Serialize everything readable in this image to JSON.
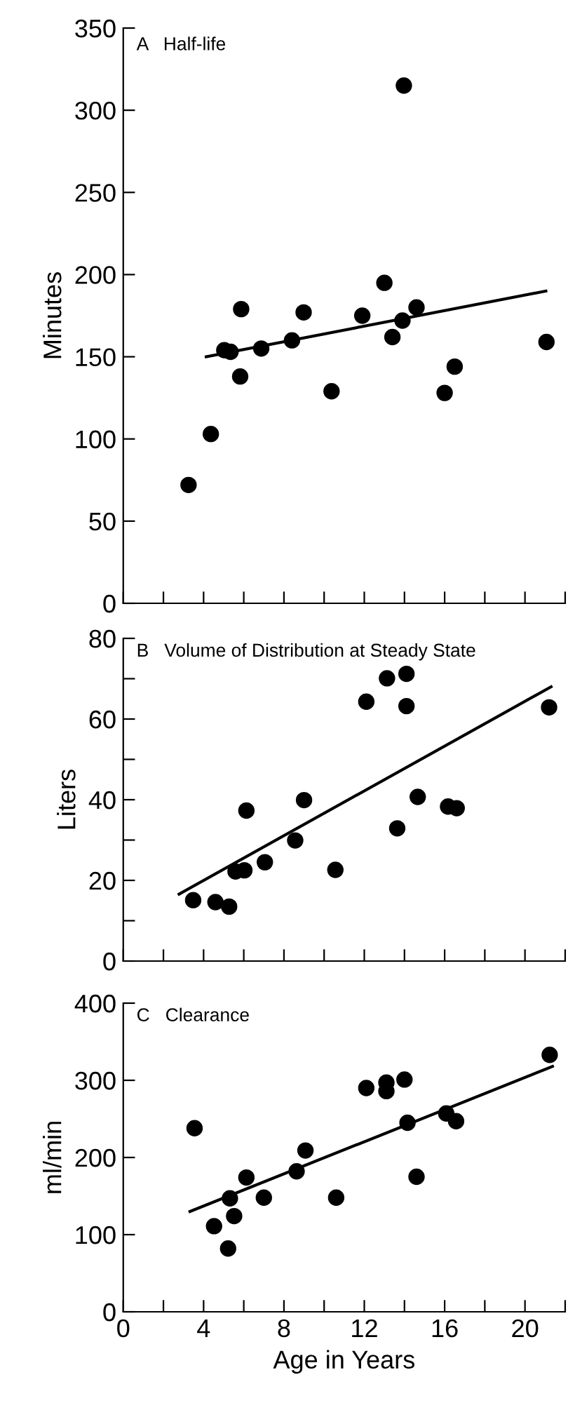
{
  "chart_data": [
    {
      "type": "scatter",
      "title": "A   Half-life",
      "ylabel": "Minutes",
      "xlim": [
        0,
        22
      ],
      "xticks": [
        {
          "value": 0,
          "label": null
        },
        {
          "value": 2,
          "label": null
        },
        {
          "value": 4,
          "label": null
        },
        {
          "value": 6,
          "label": null
        },
        {
          "value": 8,
          "label": null
        },
        {
          "value": 10,
          "label": null
        },
        {
          "value": 12,
          "label": null
        },
        {
          "value": 14,
          "label": null
        },
        {
          "value": 16,
          "label": null
        },
        {
          "value": 18,
          "label": null
        },
        {
          "value": 20,
          "label": null
        },
        {
          "value": 22,
          "label": null
        }
      ],
      "ylim": [
        0,
        350
      ],
      "yticks": [
        0,
        50,
        100,
        150,
        200,
        250,
        300,
        350
      ],
      "tick_labels": "y",
      "grid": false,
      "marker": "circle",
      "series": [
        {
          "color": "#000000",
          "x": [
            3.25,
            4.36,
            5.03,
            5.34,
            5.87,
            5.82,
            6.87,
            8.4,
            8.98,
            10.37,
            11.9,
            13.0,
            13.4,
            13.9,
            13.97,
            14.6,
            16.0,
            16.5,
            21.07
          ],
          "values": [
            72,
            103,
            154,
            153,
            179,
            138,
            155,
            160,
            177,
            129,
            175,
            195,
            162,
            172,
            315,
            180,
            128,
            144,
            159
          ]
        },
        {
          "type": "line",
          "marker": "none",
          "color": "#000000",
          "x": [
            4.13,
            21.04
          ],
          "values": [
            150,
            190
          ]
        }
      ]
    },
    {
      "type": "scatter",
      "title": "B   Volume of Distribution at Steady State",
      "ylabel": "Liters",
      "xlim": [
        0,
        22
      ],
      "xticks": [
        {
          "value": 0,
          "label": null
        },
        {
          "value": 2,
          "label": null
        },
        {
          "value": 4,
          "label": null
        },
        {
          "value": 6,
          "label": null
        },
        {
          "value": 8,
          "label": null
        },
        {
          "value": 10,
          "label": null
        },
        {
          "value": 12,
          "label": null
        },
        {
          "value": 14,
          "label": null
        },
        {
          "value": 16,
          "label": null
        },
        {
          "value": 18,
          "label": null
        },
        {
          "value": 20,
          "label": null
        },
        {
          "value": 22,
          "label": null
        }
      ],
      "ylim": [
        0,
        80
      ],
      "yticks": [
        0,
        {
          "value": 10,
          "label": null
        },
        20,
        {
          "value": 30,
          "label": null
        },
        40,
        {
          "value": 50,
          "label": null
        },
        60,
        {
          "value": 70,
          "label": null
        },
        80
      ],
      "tick_labels": "y",
      "grid": false,
      "marker": "circle",
      "series": [
        {
          "color": "#000000",
          "x": [
            3.48,
            4.59,
            5.27,
            5.59,
            6.03,
            6.13,
            7.05,
            8.56,
            9.0,
            10.56,
            12.1,
            13.13,
            14.1,
            14.1,
            13.64,
            14.66,
            16.17,
            16.6,
            21.2
          ],
          "values": [
            15.1,
            14.6,
            13.5,
            22.2,
            22.5,
            37.3,
            24.5,
            29.9,
            39.9,
            22.6,
            64.3,
            70.1,
            71.2,
            63.2,
            32.9,
            40.7,
            38.3,
            37.9,
            62.9
          ]
        },
        {
          "type": "line",
          "marker": "none",
          "color": "#000000",
          "x": [
            2.78,
            21.3
          ],
          "values": [
            16.6,
            68
          ]
        }
      ]
    },
    {
      "type": "scatter",
      "title": "C   Clearance",
      "ylabel": "ml/min",
      "xlabel": "Age in Years",
      "xlim": [
        0,
        22
      ],
      "xticks": [
        0,
        {
          "value": 2,
          "label": null
        },
        4,
        {
          "value": 6,
          "label": null
        },
        8,
        {
          "value": 10,
          "label": null
        },
        12,
        {
          "value": 14,
          "label": null
        },
        16,
        {
          "value": 18,
          "label": null
        },
        20,
        {
          "value": 22,
          "label": null
        }
      ],
      "ylim": [
        0,
        400
      ],
      "yticks": [
        0,
        100,
        200,
        300,
        400
      ],
      "grid": false,
      "marker": "circle",
      "series": [
        {
          "color": "#000000",
          "x": [
            3.55,
            4.52,
            5.22,
            5.52,
            5.31,
            6.13,
            7.0,
            8.63,
            9.07,
            10.6,
            12.1,
            13.1,
            13.1,
            14.0,
            14.15,
            14.6,
            16.08,
            16.57,
            21.23
          ],
          "values": [
            238,
            111,
            82,
            124,
            147,
            174,
            148,
            182,
            209,
            148,
            290,
            297,
            286,
            301,
            245,
            175,
            257,
            247,
            333
          ]
        },
        {
          "type": "line",
          "marker": "none",
          "color": "#000000",
          "x": [
            3.32,
            21.37
          ],
          "values": [
            130,
            318
          ]
        }
      ]
    }
  ]
}
